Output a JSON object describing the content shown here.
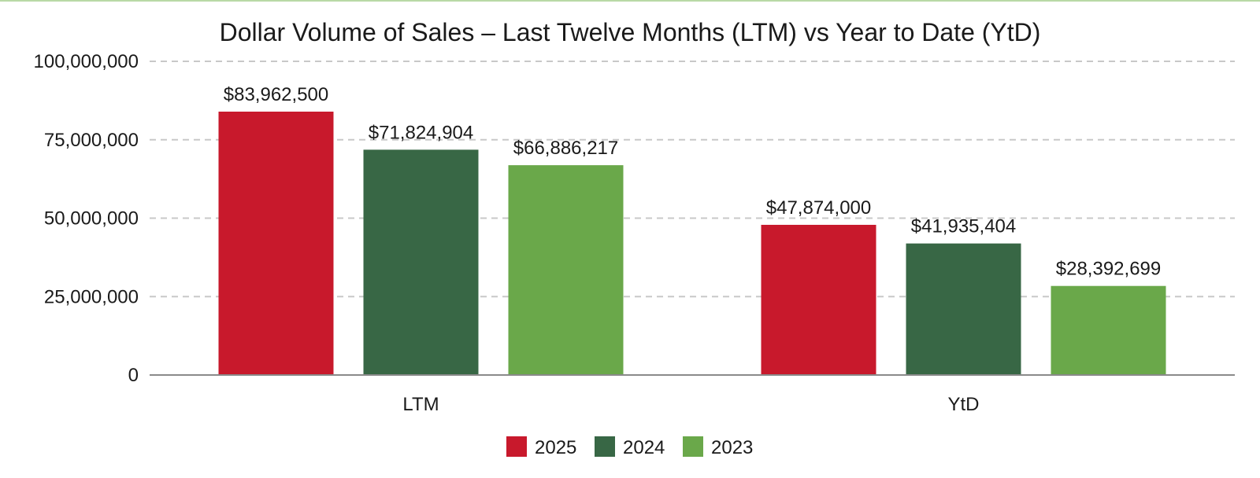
{
  "chart_data": {
    "type": "bar",
    "title": "Dollar Volume of Sales – Last Twelve Months (LTM) vs Year to Date (YtD)",
    "xlabel": "",
    "ylabel": "",
    "categories": [
      "LTM",
      "YtD"
    ],
    "series": [
      {
        "name": "2025",
        "color": "#c8192c",
        "values": [
          83962500,
          47874000
        ],
        "labels": [
          "$83,962,500",
          "$47,874,000"
        ]
      },
      {
        "name": "2024",
        "color": "#386745",
        "values": [
          71824904,
          41935404
        ],
        "labels": [
          "$71,824,904",
          "$41,935,404"
        ]
      },
      {
        "name": "2023",
        "color": "#6aa84a",
        "values": [
          66886217,
          28392699
        ],
        "labels": [
          "$66,886,217",
          "$28,392,699"
        ]
      }
    ],
    "ylim": [
      0,
      100000000
    ],
    "yticks": [
      {
        "value": 0,
        "label": "0"
      },
      {
        "value": 25000000,
        "label": "25,000,000"
      },
      {
        "value": 50000000,
        "label": "50,000,000"
      },
      {
        "value": 75000000,
        "label": "75,000,000"
      },
      {
        "value": 100000000,
        "label": "100,000,000"
      }
    ],
    "grid": true,
    "legend_position": "bottom-center"
  }
}
